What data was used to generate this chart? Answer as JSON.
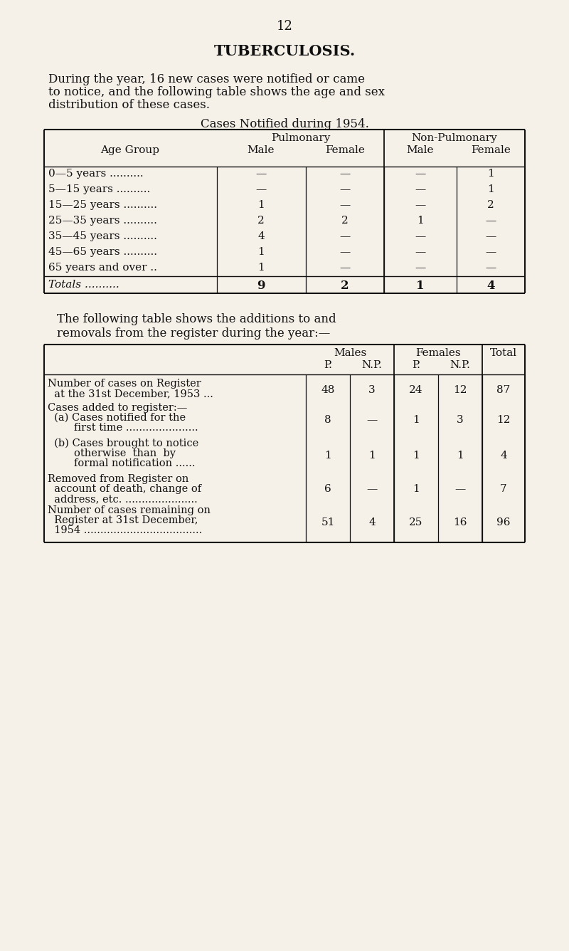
{
  "page_number": "12",
  "title": "TUBERCULOSIS.",
  "intro_line1": "During the year, 16 new cases were notified or came",
  "intro_line2": "to notice, and the following table shows the age and sex",
  "intro_line3": "distribution of these cases.",
  "table1_title": "Cases Notified during 1954.",
  "t1_rows": [
    [
      "0—5 years ..........",
      "—",
      "—",
      "—",
      "1"
    ],
    [
      "5—15 years ..........",
      "—",
      "—",
      "—",
      "1"
    ],
    [
      "15—25 years ..........",
      "1",
      "—",
      "—",
      "2"
    ],
    [
      "25—35 years ..........",
      "2",
      "2",
      "1",
      "—"
    ],
    [
      "35—45 years ..........",
      "4",
      "—",
      "—",
      "—"
    ],
    [
      "45—65 years ..........",
      "1",
      "—",
      "—",
      "—"
    ],
    [
      "65 years and over ..",
      "1",
      "—",
      "—",
      "—"
    ]
  ],
  "t1_totals": [
    "Totals ..........",
    "9",
    "2",
    "1",
    "4"
  ],
  "between_line1": "The following table shows the additions to and",
  "between_line2": "removals from the register during the year:—",
  "t2_rows": [
    {
      "label_lines": [
        "Number of cases on Register",
        "  at the 31st December, 1953 ..."
      ],
      "vals": [
        "48",
        "3",
        "24",
        "12",
        "87"
      ]
    },
    {
      "label_lines": [
        "Cases added to register:—",
        "  (a) Cases notified for the",
        "        first time ......................"
      ],
      "vals": [
        "8",
        "—",
        "1",
        "3",
        "12"
      ]
    },
    {
      "label_lines": [
        "  (b) Cases brought to notice",
        "        otherwise  than  by",
        "        formal notification ......"
      ],
      "vals": [
        "1",
        "1",
        "1",
        "1",
        "4"
      ]
    },
    {
      "label_lines": [
        "Removed from Register on",
        "  account of death, change of",
        "  address, etc. ......................"
      ],
      "vals": [
        "6",
        "—",
        "1",
        "—",
        "7"
      ]
    },
    {
      "label_lines": [
        "Number of cases remaining on",
        "  Register at 31st December,",
        "  1954 ...................................."
      ],
      "vals": [
        "51",
        "4",
        "25",
        "16",
        "96"
      ]
    }
  ],
  "bg_color": "#f5f0e8",
  "text_color": "#111111",
  "line_color": "#111111"
}
